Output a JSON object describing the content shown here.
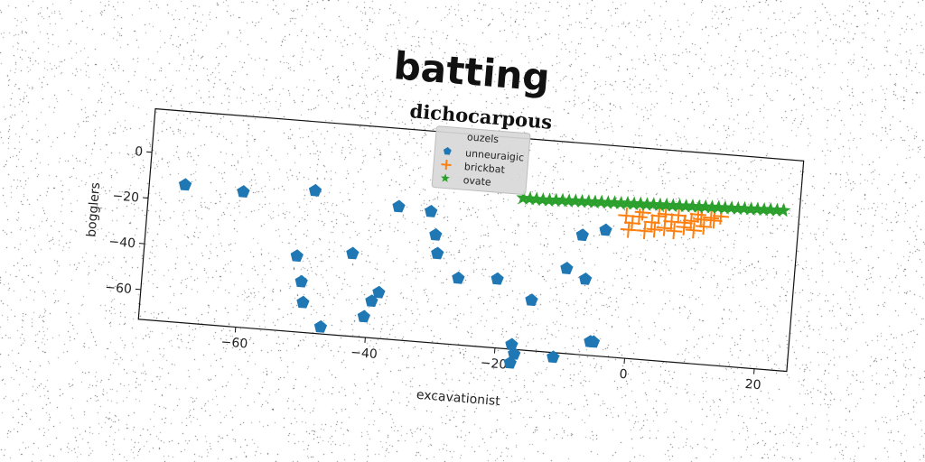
{
  "chart_data": {
    "type": "scatter",
    "suptitle": "batting",
    "title": "dichocarpous",
    "xlabel": "excavationist",
    "ylabel": "bogglers",
    "xlim": [
      -75,
      25
    ],
    "ylim": [
      -73,
      19
    ],
    "xticks": [
      -60,
      -40,
      -20,
      0,
      20
    ],
    "yticks": [
      0,
      -20,
      -40,
      -60
    ],
    "grid": false,
    "legend": {
      "title": "ouzels",
      "placement": "upper-center"
    },
    "series": [
      {
        "name": "unneuraigic",
        "marker": "pentagon",
        "color": "#1f77b4",
        "points": [
          [
            -69.5,
            -13
          ],
          [
            -60.5,
            -14
          ],
          [
            -49.5,
            -11
          ],
          [
            -36.5,
            -15
          ],
          [
            -31.5,
            -16
          ],
          [
            -30.5,
            -26
          ],
          [
            -30,
            -34
          ],
          [
            -26.5,
            -44
          ],
          [
            -20.5,
            -43
          ],
          [
            -15,
            -51
          ],
          [
            -10,
            -36
          ],
          [
            -7,
            -40
          ],
          [
            -8,
            -21
          ],
          [
            -4.5,
            -18
          ],
          [
            -5.5,
            -67
          ],
          [
            -5,
            -67
          ],
          [
            -11,
            -75
          ],
          [
            -17.5,
            -71
          ],
          [
            -17,
            -75
          ],
          [
            -17.5,
            -79
          ],
          [
            -51.5,
            -40
          ],
          [
            -50.5,
            -51
          ],
          [
            -50,
            -60
          ],
          [
            -47,
            -70
          ],
          [
            -43,
            -37
          ],
          [
            -40.5,
            -64
          ],
          [
            -39.5,
            -57
          ],
          [
            -38.5,
            -53
          ]
        ]
      },
      {
        "name": "brickbat",
        "marker": "plus",
        "color": "#ff7f0e",
        "points": [
          [
            -1.5,
            -11
          ],
          [
            -0.5,
            -14
          ],
          [
            0.5,
            -11
          ],
          [
            1.5,
            -17
          ],
          [
            2.5,
            -13
          ],
          [
            3.5,
            -10
          ],
          [
            4.5,
            -15
          ],
          [
            5.5,
            -12
          ],
          [
            6.5,
            -9
          ],
          [
            7.5,
            -14
          ],
          [
            8.5,
            -11
          ],
          [
            9.5,
            -8
          ],
          [
            10.5,
            -13
          ],
          [
            11.5,
            -9
          ],
          [
            12,
            -10
          ],
          [
            13,
            -8
          ],
          [
            -1,
            -17
          ],
          [
            3,
            -16
          ],
          [
            6,
            -16
          ],
          [
            9,
            -15
          ],
          [
            1,
            -9
          ],
          [
            4.5,
            -9
          ],
          [
            7.5,
            -12
          ],
          [
            10,
            -10
          ]
        ]
      },
      {
        "name": "ovate",
        "marker": "star",
        "color": "#2ca02c",
        "points": [
          [
            -17.5,
            -7
          ],
          [
            -16.5,
            -7
          ],
          [
            -15.5,
            -7
          ],
          [
            -14.5,
            -7
          ],
          [
            -13.5,
            -7
          ],
          [
            -12.5,
            -6.8
          ],
          [
            -11.5,
            -6.6
          ],
          [
            -10.5,
            -6.6
          ],
          [
            -9.5,
            -6.4
          ],
          [
            -8.5,
            -6.4
          ],
          [
            -7.5,
            -6.2
          ],
          [
            -6.5,
            -6.2
          ],
          [
            -5.5,
            -6
          ],
          [
            -4.5,
            -6
          ],
          [
            -3.5,
            -5.8
          ],
          [
            -2.5,
            -5.8
          ],
          [
            -1.5,
            -5.6
          ],
          [
            -0.5,
            -5.6
          ],
          [
            0.5,
            -5.4
          ],
          [
            1.5,
            -5.4
          ],
          [
            2.5,
            -5.2
          ],
          [
            3.5,
            -5.2
          ],
          [
            4.5,
            -5
          ],
          [
            5.5,
            -5
          ],
          [
            6.5,
            -4.8
          ],
          [
            7.5,
            -4.8
          ],
          [
            8.5,
            -4.6
          ],
          [
            9.5,
            -4.6
          ],
          [
            10.5,
            -4.4
          ],
          [
            11.5,
            -4.4
          ],
          [
            12.5,
            -4.2
          ],
          [
            13.5,
            -4.2
          ],
          [
            14.5,
            -4
          ],
          [
            15.5,
            -4
          ],
          [
            16.5,
            -3.8
          ],
          [
            17.5,
            -3.8
          ],
          [
            18.5,
            -3.6
          ],
          [
            19.5,
            -3.6
          ],
          [
            20.5,
            -3.4
          ],
          [
            21.5,
            -3.4
          ],
          [
            22.5,
            -3.2
          ]
        ]
      }
    ]
  }
}
